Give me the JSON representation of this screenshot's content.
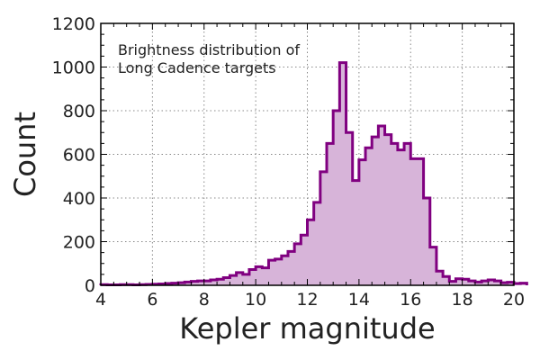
{
  "chart_data": {
    "type": "histogram",
    "xlabel": "Kepler magnitude",
    "ylabel": "Count",
    "annotation": [
      "Brightness distribution of",
      "Long Cadence targets"
    ],
    "xlim": [
      4,
      20
    ],
    "ylim": [
      0,
      1200
    ],
    "xticks": [
      "4",
      "6",
      "8",
      "10",
      "12",
      "14",
      "16",
      "18",
      "20"
    ],
    "yticks": [
      "0",
      "200",
      "400",
      "600",
      "800",
      "1000",
      "1200"
    ],
    "grid": true,
    "bin_width": 0.25,
    "bin_start": 4.0,
    "counts": [
      3,
      2,
      2,
      3,
      3,
      2,
      3,
      4,
      5,
      6,
      8,
      10,
      12,
      15,
      18,
      20,
      20,
      25,
      28,
      35,
      45,
      58,
      50,
      72,
      85,
      80,
      115,
      120,
      135,
      155,
      190,
      230,
      300,
      380,
      520,
      650,
      800,
      1020,
      700,
      480,
      575,
      630,
      680,
      730,
      690,
      650,
      620,
      650,
      580,
      580,
      400,
      175,
      65,
      40,
      18,
      30,
      28,
      20,
      15,
      20,
      25,
      20,
      12,
      14,
      8,
      10
    ],
    "fill_color": "#d7b4d9",
    "line_color": "#800080"
  }
}
